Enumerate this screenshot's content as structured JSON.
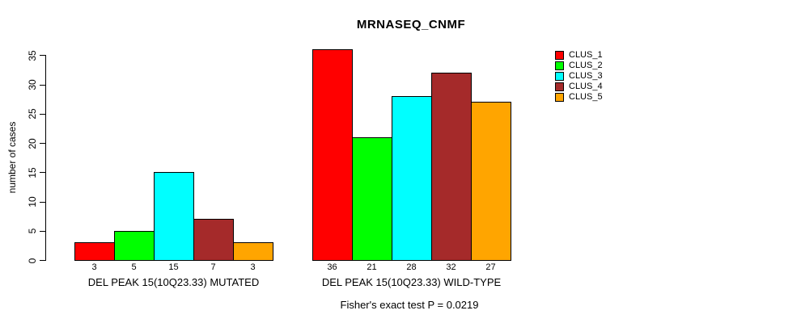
{
  "title": "MRNASEQ_CNMF",
  "footer": "Fisher's exact test P = 0.0219",
  "chart_data": {
    "type": "bar",
    "title": "MRNASEQ_CNMF",
    "xlabel": "",
    "ylabel": "number of cases",
    "ylim": [
      0,
      35
    ],
    "yticks": [
      0,
      5,
      10,
      15,
      20,
      25,
      30,
      35
    ],
    "grid": false,
    "legend_position": "right",
    "categories": [
      "DEL PEAK 15(10Q23.33) MUTATED",
      "DEL PEAK 15(10Q23.33) WILD-TYPE"
    ],
    "series": [
      {
        "name": "CLUS_1",
        "color": "#FF0000",
        "values": [
          3,
          36
        ]
      },
      {
        "name": "CLUS_2",
        "color": "#00FF00",
        "values": [
          5,
          21
        ]
      },
      {
        "name": "CLUS_3",
        "color": "#00FFFF",
        "values": [
          15,
          28
        ]
      },
      {
        "name": "CLUS_4",
        "color": "#A52A2A",
        "values": [
          7,
          32
        ]
      },
      {
        "name": "CLUS_5",
        "color": "#FFA500",
        "values": [
          3,
          27
        ]
      }
    ],
    "bar_value_labels": {
      "DEL PEAK 15(10Q23.33) MUTATED": [
        "3",
        "5",
        "15",
        "7",
        "3"
      ],
      "DEL PEAK 15(10Q23.33) WILD-TYPE": [
        "36",
        "21",
        "28",
        "32",
        "27"
      ]
    },
    "annotation": "Fisher's exact test P = 0.0219",
    "colors": {
      "bar_border": "#000000",
      "axis": "#000000",
      "text": "#000000",
      "background": "#FFFFFF"
    }
  }
}
